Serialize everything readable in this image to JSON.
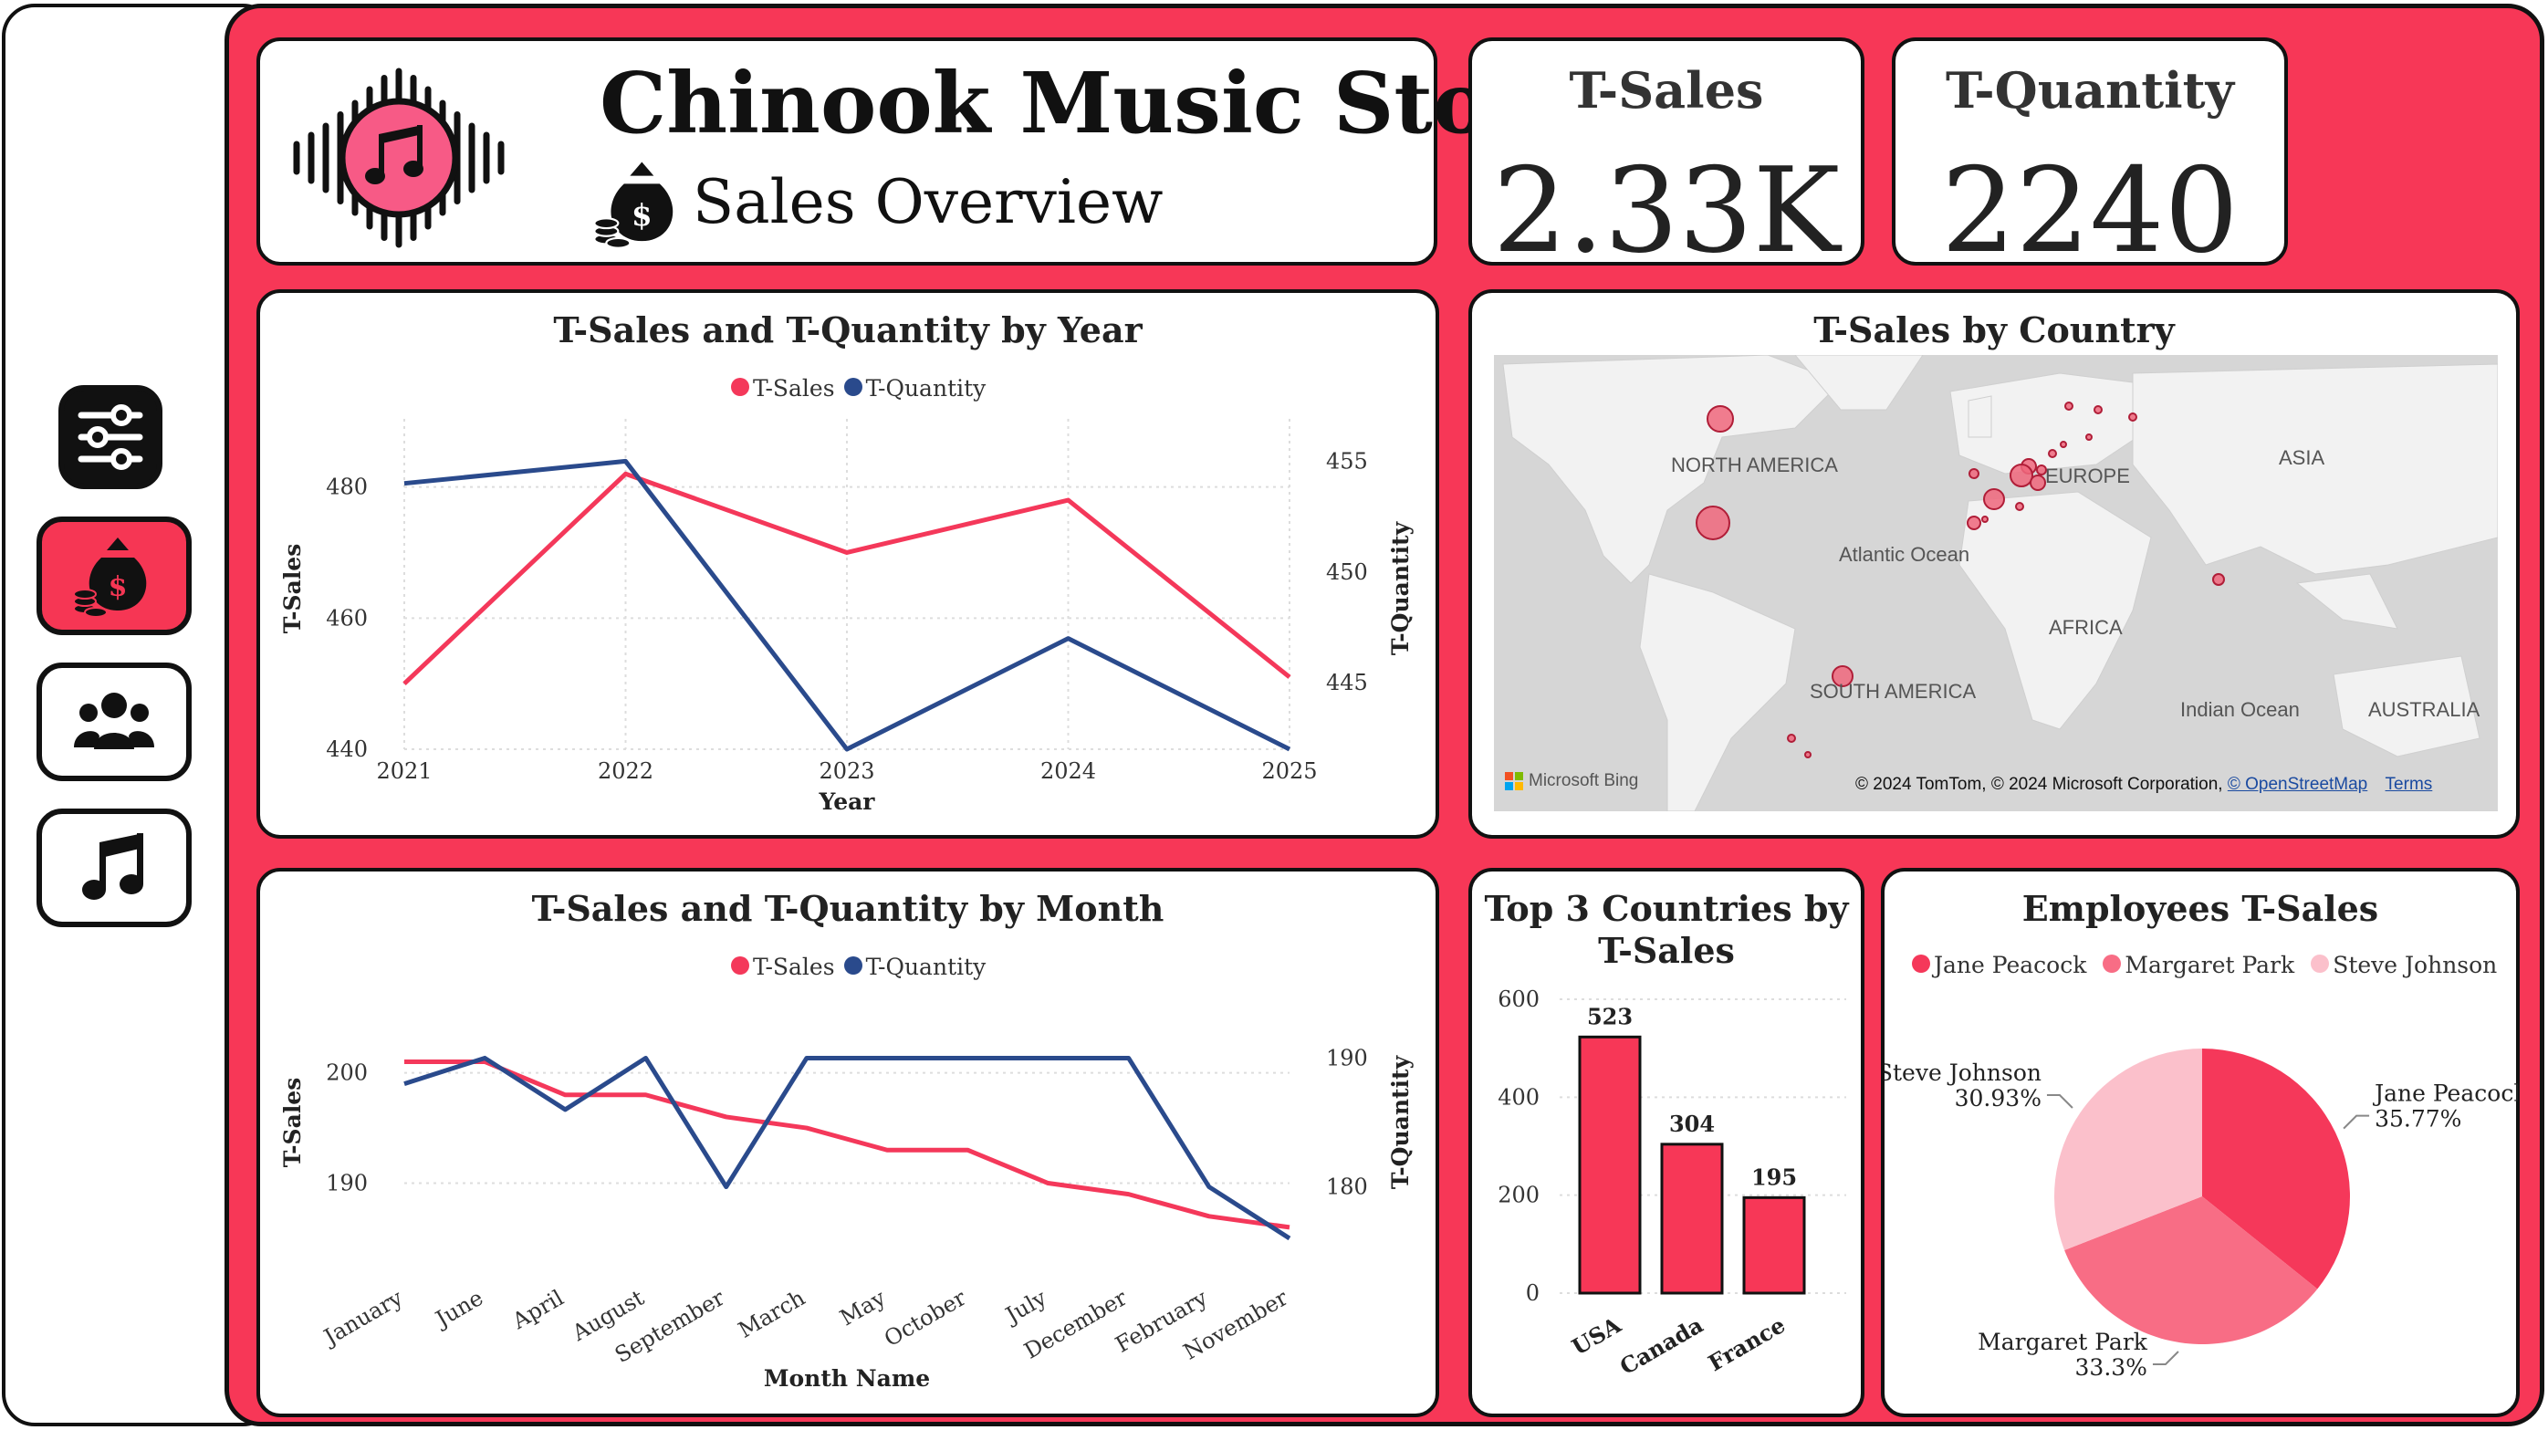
{
  "header": {
    "title": "Chinook Music Store",
    "subtitle": "Sales Overview"
  },
  "kpis": [
    {
      "label": "T-Sales",
      "value": "2.33K"
    },
    {
      "label": "T-Quantity",
      "value": "2240"
    }
  ],
  "nav": {
    "items": [
      "filters-icon",
      "sales-icon",
      "employees-icon",
      "music-icon"
    ],
    "active": "sales-icon"
  },
  "colors": {
    "accent": "#f73757",
    "sales": "#f4385a",
    "quantity": "#2a4a8c",
    "pie": [
      "#f5385a",
      "#f86d85",
      "#fbc0cb"
    ]
  },
  "year_chart": {
    "title": "T-Sales and T-Quantity by Year",
    "legend": [
      "T-Sales",
      "T-Quantity"
    ],
    "xlabel": "Year",
    "ylabel_left": "T-Sales",
    "ylabel_right": "T-Quantity"
  },
  "month_chart": {
    "title": "T-Sales and T-Quantity by Month",
    "legend": [
      "T-Sales",
      "T-Quantity"
    ],
    "xlabel": "Month Name",
    "ylabel_left": "T-Sales",
    "ylabel_right": "T-Quantity"
  },
  "map": {
    "title": "T-Sales by Country",
    "labels": [
      "NORTH AMERICA",
      "EUROPE",
      "ASIA",
      "Atlantic Ocean",
      "AFRICA",
      "SOUTH AMERICA",
      "Indian Ocean",
      "AUSTRALIA"
    ],
    "bing": "Microsoft Bing",
    "copyright": "© 2024 TomTom, © 2024 Microsoft Corporation, ",
    "osm": "© OpenStreetMap",
    "terms": "Terms"
  },
  "top3": {
    "title_line1": "Top 3 Countries by",
    "title_line2": "T-Sales"
  },
  "employees": {
    "title": "Employees T-Sales"
  },
  "chart_data": [
    {
      "type": "line",
      "title": "T-Sales and T-Quantity by Year",
      "x": [
        "2021",
        "2022",
        "2023",
        "2024",
        "2025"
      ],
      "xlabel": "Year",
      "series": [
        {
          "name": "T-Sales",
          "axis": "left",
          "values": [
            450,
            482,
            470,
            478,
            451
          ]
        },
        {
          "name": "T-Quantity",
          "axis": "right",
          "values": [
            454,
            455,
            442,
            447,
            442
          ]
        }
      ],
      "y_left": {
        "label": "T-Sales",
        "ticks": [
          440,
          460,
          480
        ],
        "range": [
          440,
          489
        ]
      },
      "y_right": {
        "label": "T-Quantity",
        "ticks": [
          445,
          450,
          455
        ],
        "range": [
          442,
          456.5
        ]
      },
      "legend": "top-center",
      "grid": true
    },
    {
      "type": "line",
      "title": "T-Sales and T-Quantity by Month",
      "x": [
        "January",
        "June",
        "April",
        "August",
        "September",
        "March",
        "May",
        "October",
        "July",
        "December",
        "February",
        "November"
      ],
      "xlabel": "Month Name",
      "series": [
        {
          "name": "T-Sales",
          "axis": "left",
          "values": [
            201,
            201,
            198,
            198,
            196,
            195,
            193,
            193,
            190,
            189,
            187,
            186
          ]
        },
        {
          "name": "T-Quantity",
          "axis": "right",
          "values": [
            188,
            190,
            186,
            190,
            180,
            190,
            190,
            190,
            190,
            190,
            180,
            176
          ]
        }
      ],
      "y_left": {
        "label": "T-Sales",
        "ticks": [
          190,
          200
        ],
        "range": [
          185,
          206
        ]
      },
      "y_right": {
        "label": "T-Quantity",
        "ticks": [
          180,
          190
        ],
        "range": [
          176,
          194
        ]
      },
      "legend": "top-center",
      "grid": true
    },
    {
      "type": "bar",
      "title": "Top 3 Countries by T-Sales",
      "categories": [
        "USA",
        "Canada",
        "France"
      ],
      "values": [
        523,
        304,
        195
      ],
      "ylim": [
        0,
        600
      ],
      "ticks": [
        0,
        200,
        400,
        600
      ]
    },
    {
      "type": "pie",
      "title": "Employees T-Sales",
      "labels": [
        "Jane Peacock",
        "Margaret Park",
        "Steve Johnson"
      ],
      "values": [
        35.77,
        33.3,
        30.93
      ],
      "value_labels": [
        "35.77%",
        "33.3%",
        "30.93%"
      ],
      "legend": "top"
    }
  ]
}
